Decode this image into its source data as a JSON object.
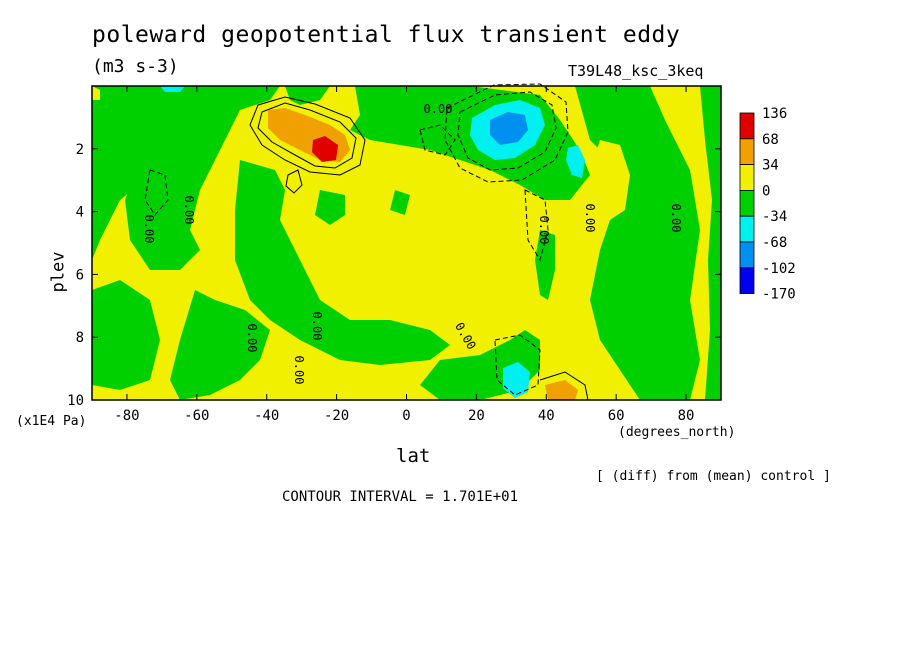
{
  "chart_data": {
    "type": "heatmap",
    "title": "poleward geopotential flux transient eddy",
    "units": "(m3 s-3)",
    "run_label": "T39L48_ksc_3keq",
    "xlabel": "lat",
    "x_units": "(degrees_north)",
    "ylabel": "plev",
    "y_units": "(x1E4 Pa)",
    "xlim": [
      -90,
      90
    ],
    "ylim": [
      10,
      0
    ],
    "x_ticks": [
      -80,
      -60,
      -40,
      -20,
      0,
      20,
      40,
      60,
      80
    ],
    "y_ticks": [
      2,
      4,
      6,
      8,
      10
    ],
    "contour_interval_text": "CONTOUR INTERVAL = 1.701E+01",
    "footnote": "[ (diff) from (mean) control ]",
    "legend": {
      "labels": [
        "136",
        "68",
        "34",
        "0",
        "-34",
        "-68",
        "-102",
        "-170"
      ],
      "colors": [
        "#e00000",
        "#f0a000",
        "#f0f000",
        "#00d000",
        "#00f0f0",
        "#0090f0",
        "#0000f0"
      ]
    },
    "contour_labels": [
      "0.00",
      "0.00",
      "0.00",
      "0.00",
      "0.00",
      "0.00",
      "0.00",
      "0.00",
      "0.00",
      "0.00"
    ],
    "field_colors": {
      "green": "#00d000",
      "yellow": "#f0f000",
      "orange": "#f0a000",
      "red": "#e00000",
      "cyan": "#00f0f0",
      "blue": "#0090f0"
    }
  }
}
